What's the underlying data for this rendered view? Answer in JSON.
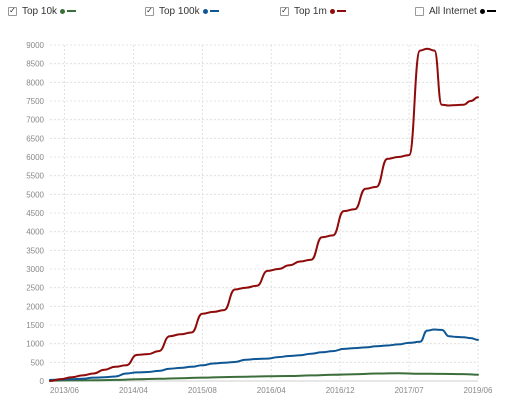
{
  "legend": [
    {
      "label": "Top 10k",
      "checked": true,
      "checkmark": "✓",
      "color": "#3b6e3b",
      "icon": "checkbox-icon"
    },
    {
      "label": "Top 100k",
      "checked": true,
      "checkmark": "✓",
      "color": "#0f5794",
      "icon": "checkbox-icon"
    },
    {
      "label": "Top 1m",
      "checked": true,
      "checkmark": "✓",
      "color": "#8f0b0b",
      "icon": "checkbox-icon"
    },
    {
      "label": "All Internet",
      "checked": false,
      "checkmark": "",
      "color": "#000000",
      "icon": "checkbox-icon"
    }
  ],
  "chart_data": {
    "type": "line",
    "title": "",
    "xlabel": "",
    "ylabel": "",
    "ylim": [
      0,
      9000
    ],
    "y_ticks": [
      "0",
      "500",
      "1000",
      "1500",
      "2000",
      "2500",
      "3000",
      "3500",
      "4000",
      "4500",
      "5000",
      "5500",
      "6000",
      "6500",
      "7000",
      "7500",
      "8000",
      "8500",
      "9000"
    ],
    "x_ticks": [
      "2013/06",
      "2014/04",
      "2015/08",
      "2016/04",
      "2016/12",
      "2017/07",
      "2019/06"
    ],
    "grid": true,
    "legend_position": "top",
    "series": [
      {
        "name": "Top 10k",
        "color": "#3b6e3b",
        "points": [
          [
            0,
            10
          ],
          [
            6,
            15
          ],
          [
            12,
            20
          ],
          [
            18,
            30
          ],
          [
            24,
            45
          ],
          [
            30,
            60
          ],
          [
            36,
            75
          ],
          [
            42,
            90
          ],
          [
            48,
            105
          ],
          [
            54,
            115
          ],
          [
            60,
            125
          ],
          [
            66,
            135
          ],
          [
            72,
            150
          ],
          [
            78,
            165
          ],
          [
            84,
            180
          ],
          [
            90,
            200
          ],
          [
            96,
            210
          ],
          [
            102,
            195
          ],
          [
            108,
            190
          ],
          [
            114,
            185
          ],
          [
            118,
            170
          ]
        ]
      },
      {
        "name": "Top 100k",
        "color": "#0f5794",
        "points": [
          [
            0,
            30
          ],
          [
            3,
            40
          ],
          [
            6,
            50
          ],
          [
            9,
            60
          ],
          [
            12,
            90
          ],
          [
            15,
            100
          ],
          [
            18,
            120
          ],
          [
            21,
            200
          ],
          [
            24,
            230
          ],
          [
            27,
            240
          ],
          [
            30,
            270
          ],
          [
            33,
            330
          ],
          [
            36,
            350
          ],
          [
            39,
            380
          ],
          [
            42,
            420
          ],
          [
            45,
            470
          ],
          [
            48,
            490
          ],
          [
            51,
            510
          ],
          [
            54,
            570
          ],
          [
            57,
            590
          ],
          [
            60,
            600
          ],
          [
            63,
            640
          ],
          [
            66,
            670
          ],
          [
            69,
            690
          ],
          [
            72,
            730
          ],
          [
            75,
            770
          ],
          [
            78,
            800
          ],
          [
            81,
            860
          ],
          [
            84,
            880
          ],
          [
            87,
            900
          ],
          [
            90,
            930
          ],
          [
            93,
            950
          ],
          [
            96,
            980
          ],
          [
            99,
            1020
          ],
          [
            102,
            1050
          ],
          [
            104,
            1350
          ],
          [
            106,
            1380
          ],
          [
            108,
            1370
          ],
          [
            110,
            1200
          ],
          [
            112,
            1180
          ],
          [
            114,
            1170
          ],
          [
            116,
            1150
          ],
          [
            118,
            1100
          ]
        ]
      },
      {
        "name": "Top 1m",
        "color": "#8f0b0b",
        "points": [
          [
            0,
            0
          ],
          [
            3,
            50
          ],
          [
            6,
            100
          ],
          [
            9,
            150
          ],
          [
            12,
            200
          ],
          [
            15,
            300
          ],
          [
            18,
            380
          ],
          [
            21,
            420
          ],
          [
            24,
            700
          ],
          [
            27,
            720
          ],
          [
            30,
            800
          ],
          [
            33,
            1200
          ],
          [
            36,
            1250
          ],
          [
            39,
            1300
          ],
          [
            42,
            1800
          ],
          [
            45,
            1850
          ],
          [
            48,
            1900
          ],
          [
            51,
            2450
          ],
          [
            54,
            2500
          ],
          [
            57,
            2550
          ],
          [
            60,
            2950
          ],
          [
            63,
            3000
          ],
          [
            66,
            3100
          ],
          [
            69,
            3200
          ],
          [
            72,
            3250
          ],
          [
            75,
            3850
          ],
          [
            78,
            3900
          ],
          [
            81,
            4550
          ],
          [
            84,
            4600
          ],
          [
            87,
            5150
          ],
          [
            90,
            5200
          ],
          [
            93,
            5950
          ],
          [
            96,
            6000
          ],
          [
            99,
            6050
          ],
          [
            102,
            8850
          ],
          [
            104,
            8900
          ],
          [
            106,
            8850
          ],
          [
            108,
            7400
          ],
          [
            110,
            7380
          ],
          [
            112,
            7390
          ],
          [
            114,
            7400
          ],
          [
            116,
            7500
          ],
          [
            118,
            7600
          ]
        ]
      }
    ]
  }
}
